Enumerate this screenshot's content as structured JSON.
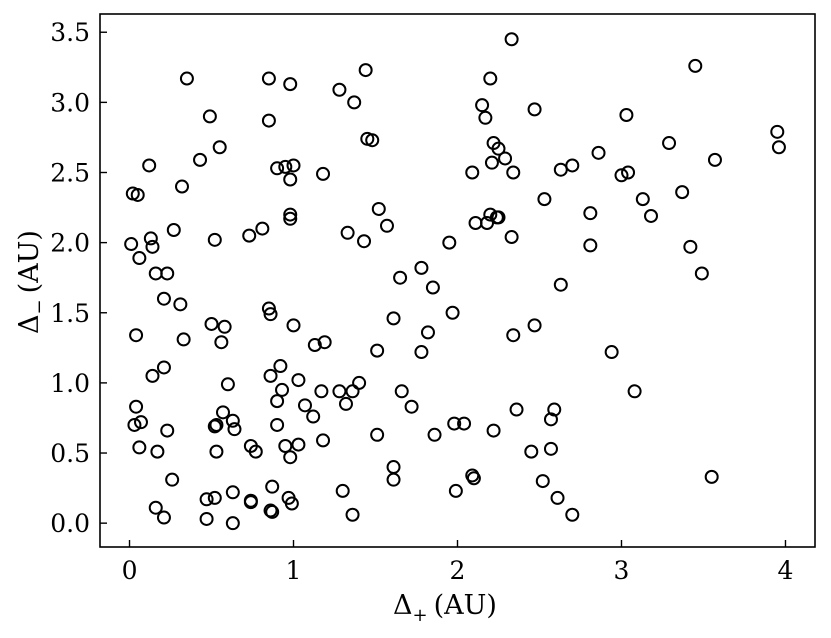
{
  "chart_data": {
    "type": "scatter",
    "title": "",
    "xlabel": "Δ",
    "xlabel_sub": "+",
    "xlabel_unit": "(AU)",
    "ylabel": "Δ",
    "ylabel_sub": "−",
    "ylabel_unit": "(AU)",
    "xlim": [
      -0.18,
      4.18
    ],
    "ylim": [
      -0.17,
      3.63
    ],
    "xticks": [
      0,
      1,
      2,
      3,
      4
    ],
    "xtick_labels": [
      "0",
      "1",
      "2",
      "3",
      "4"
    ],
    "yticks": [
      0.0,
      0.5,
      1.0,
      1.5,
      2.0,
      2.5,
      3.0,
      3.5
    ],
    "ytick_labels": [
      "0.0",
      "0.5",
      "1.0",
      "1.5",
      "2.0",
      "2.5",
      "3.0",
      "3.5"
    ],
    "grid": false,
    "marker": "open-circle",
    "points": [
      [
        0.02,
        2.35
      ],
      [
        0.05,
        2.34
      ],
      [
        0.01,
        1.99
      ],
      [
        0.06,
        1.89
      ],
      [
        0.04,
        1.34
      ],
      [
        0.03,
        0.7
      ],
      [
        0.07,
        0.72
      ],
      [
        0.04,
        0.83
      ],
      [
        0.06,
        0.54
      ],
      [
        0.12,
        2.55
      ],
      [
        0.13,
        2.03
      ],
      [
        0.14,
        1.97
      ],
      [
        0.16,
        1.78
      ],
      [
        0.23,
        1.78
      ],
      [
        0.21,
        1.6
      ],
      [
        0.14,
        1.05
      ],
      [
        0.21,
        1.11
      ],
      [
        0.23,
        0.66
      ],
      [
        0.17,
        0.51
      ],
      [
        0.26,
        0.31
      ],
      [
        0.16,
        0.11
      ],
      [
        0.21,
        0.04
      ],
      [
        0.35,
        3.17
      ],
      [
        0.32,
        2.4
      ],
      [
        0.27,
        2.09
      ],
      [
        0.31,
        1.56
      ],
      [
        0.33,
        1.31
      ],
      [
        0.43,
        2.59
      ],
      [
        0.49,
        2.9
      ],
      [
        0.55,
        2.68
      ],
      [
        0.52,
        2.02
      ],
      [
        0.5,
        1.42
      ],
      [
        0.58,
        1.4
      ],
      [
        0.56,
        1.29
      ],
      [
        0.6,
        0.99
      ],
      [
        0.57,
        0.79
      ],
      [
        0.52,
        0.69
      ],
      [
        0.53,
        0.7
      ],
      [
        0.53,
        0.51
      ],
      [
        0.47,
        0.17
      ],
      [
        0.52,
        0.18
      ],
      [
        0.47,
        0.03
      ],
      [
        0.63,
        0.73
      ],
      [
        0.64,
        0.67
      ],
      [
        0.63,
        0.22
      ],
      [
        0.63,
        0.0
      ],
      [
        0.73,
        2.05
      ],
      [
        0.81,
        2.1
      ],
      [
        0.74,
        0.55
      ],
      [
        0.77,
        0.51
      ],
      [
        0.74,
        0.16
      ],
      [
        0.74,
        0.15
      ],
      [
        0.85,
        3.17
      ],
      [
        0.85,
        2.87
      ],
      [
        0.9,
        2.53
      ],
      [
        0.95,
        2.54
      ],
      [
        0.85,
        1.53
      ],
      [
        0.86,
        1.49
      ],
      [
        0.86,
        1.05
      ],
      [
        0.92,
        1.12
      ],
      [
        0.9,
        0.87
      ],
      [
        0.93,
        0.95
      ],
      [
        0.9,
        0.7
      ],
      [
        0.95,
        0.55
      ],
      [
        0.87,
        0.26
      ],
      [
        0.86,
        0.09
      ],
      [
        0.87,
        0.08
      ],
      [
        0.98,
        3.13
      ],
      [
        1.0,
        2.55
      ],
      [
        0.98,
        2.45
      ],
      [
        0.98,
        2.2
      ],
      [
        0.98,
        2.17
      ],
      [
        1.0,
        1.41
      ],
      [
        1.03,
        1.02
      ],
      [
        1.07,
        0.84
      ],
      [
        1.12,
        0.76
      ],
      [
        0.98,
        0.47
      ],
      [
        1.03,
        0.56
      ],
      [
        0.97,
        0.18
      ],
      [
        0.99,
        0.14
      ],
      [
        1.13,
        1.27
      ],
      [
        1.18,
        2.49
      ],
      [
        1.19,
        1.29
      ],
      [
        1.17,
        0.94
      ],
      [
        1.18,
        0.59
      ],
      [
        1.28,
        3.09
      ],
      [
        1.37,
        3.0
      ],
      [
        1.33,
        2.07
      ],
      [
        1.28,
        0.94
      ],
      [
        1.32,
        0.85
      ],
      [
        1.36,
        0.94
      ],
      [
        1.4,
        1.0
      ],
      [
        1.3,
        0.23
      ],
      [
        1.36,
        0.06
      ],
      [
        1.44,
        3.23
      ],
      [
        1.45,
        2.74
      ],
      [
        1.48,
        2.73
      ],
      [
        1.43,
        2.01
      ],
      [
        1.52,
        2.24
      ],
      [
        1.51,
        1.23
      ],
      [
        1.51,
        0.63
      ],
      [
        1.57,
        2.12
      ],
      [
        1.61,
        1.46
      ],
      [
        1.65,
        1.75
      ],
      [
        1.61,
        0.4
      ],
      [
        1.61,
        0.31
      ],
      [
        1.66,
        0.94
      ],
      [
        1.72,
        0.83
      ],
      [
        1.78,
        1.82
      ],
      [
        1.82,
        1.36
      ],
      [
        1.78,
        1.22
      ],
      [
        1.85,
        1.68
      ],
      [
        1.86,
        0.63
      ],
      [
        1.95,
        2.0
      ],
      [
        1.97,
        1.5
      ],
      [
        1.98,
        0.71
      ],
      [
        2.04,
        0.71
      ],
      [
        1.99,
        0.23
      ],
      [
        2.09,
        2.5
      ],
      [
        2.11,
        2.14
      ],
      [
        2.09,
        0.34
      ],
      [
        2.1,
        0.32
      ],
      [
        2.15,
        2.98
      ],
      [
        2.17,
        2.89
      ],
      [
        2.2,
        3.17
      ],
      [
        2.21,
        2.57
      ],
      [
        2.22,
        2.71
      ],
      [
        2.25,
        2.67
      ],
      [
        2.29,
        2.6
      ],
      [
        2.18,
        2.14
      ],
      [
        2.2,
        2.2
      ],
      [
        2.24,
        2.18
      ],
      [
        2.25,
        2.18
      ],
      [
        2.22,
        0.66
      ],
      [
        2.33,
        3.45
      ],
      [
        2.34,
        2.5
      ],
      [
        2.33,
        2.04
      ],
      [
        2.34,
        1.34
      ],
      [
        2.36,
        0.81
      ],
      [
        2.47,
        2.95
      ],
      [
        2.47,
        1.41
      ],
      [
        2.45,
        0.51
      ],
      [
        2.53,
        2.31
      ],
      [
        2.52,
        0.3
      ],
      [
        2.57,
        0.74
      ],
      [
        2.59,
        0.81
      ],
      [
        2.57,
        0.53
      ],
      [
        2.61,
        0.18
      ],
      [
        2.63,
        2.52
      ],
      [
        2.63,
        1.7
      ],
      [
        2.7,
        2.55
      ],
      [
        2.7,
        0.06
      ],
      [
        2.86,
        2.64
      ],
      [
        2.81,
        2.21
      ],
      [
        2.81,
        1.98
      ],
      [
        2.94,
        1.22
      ],
      [
        3.0,
        2.48
      ],
      [
        3.04,
        2.5
      ],
      [
        3.03,
        2.91
      ],
      [
        3.08,
        0.94
      ],
      [
        3.13,
        2.31
      ],
      [
        3.18,
        2.19
      ],
      [
        3.29,
        2.71
      ],
      [
        3.37,
        2.36
      ],
      [
        3.42,
        1.97
      ],
      [
        3.45,
        3.26
      ],
      [
        3.49,
        1.78
      ],
      [
        3.57,
        2.59
      ],
      [
        3.55,
        0.33
      ],
      [
        3.95,
        2.79
      ],
      [
        3.96,
        2.68
      ]
    ]
  }
}
